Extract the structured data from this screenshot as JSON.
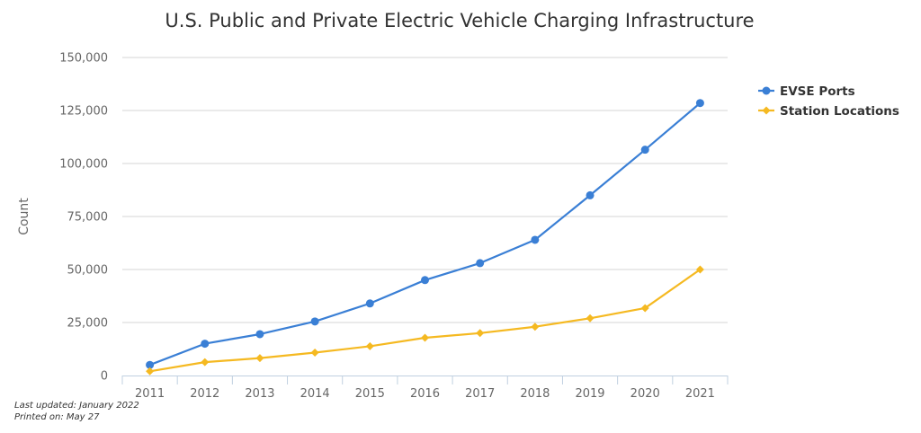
{
  "chart_data": {
    "type": "line",
    "title": "U.S. Public and Private Electric Vehicle Charging Infrastructure",
    "xlabel": "",
    "ylabel": "Count",
    "categories": [
      "2011",
      "2012",
      "2013",
      "2014",
      "2015",
      "2016",
      "2017",
      "2018",
      "2019",
      "2020",
      "2021"
    ],
    "y_ticks": [
      "0",
      "25,000",
      "50,000",
      "75,000",
      "100,000",
      "125,000",
      "150,000"
    ],
    "ylim": [
      0,
      150000
    ],
    "grid": true,
    "legend_position": "right",
    "series": [
      {
        "name": "EVSE Ports",
        "color": "#3a7fd5",
        "marker": "circle",
        "values": [
          5000,
          15000,
          19500,
          25500,
          34000,
          45000,
          53000,
          64000,
          85000,
          106500,
          128500
        ]
      },
      {
        "name": "Station Locations",
        "color": "#f5b921",
        "marker": "diamond",
        "values": [
          2000,
          6300,
          8200,
          10800,
          13800,
          17800,
          20000,
          23000,
          27000,
          31800,
          50000
        ]
      }
    ]
  },
  "footnotes": {
    "updated": "Last updated: January 2022",
    "printed": "Printed on: May 27"
  }
}
